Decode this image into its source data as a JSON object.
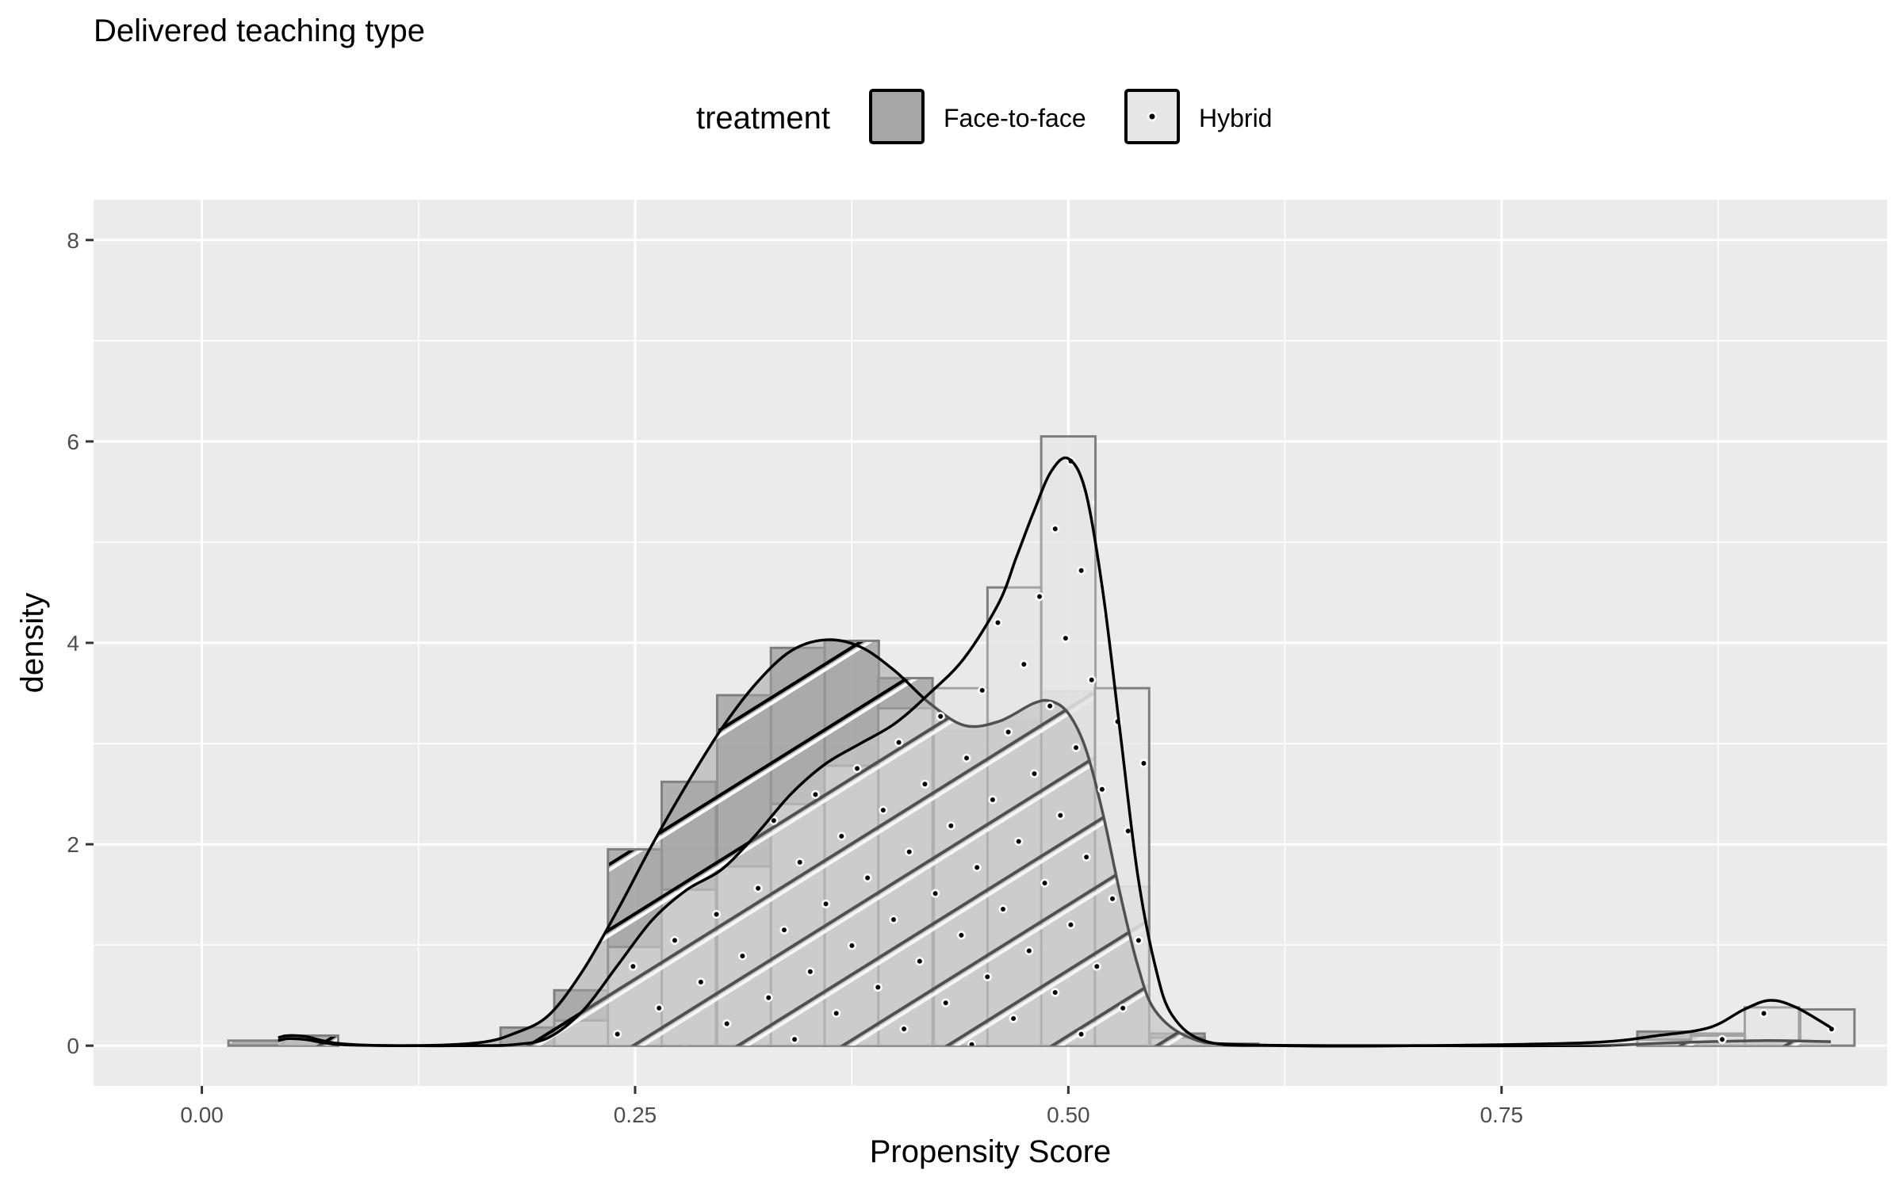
{
  "chart_data": {
    "type": "histogram+density",
    "title": "Delivered teaching type",
    "xlabel": "Propensity Score",
    "ylabel": "density",
    "xlim": [
      -0.0625,
      0.9725
    ],
    "ylim": [
      -0.4,
      8.4
    ],
    "x_ticks": [
      0.0,
      0.25,
      0.5,
      0.75
    ],
    "x_tick_labels": [
      "0.00",
      "0.25",
      "0.50",
      "0.75"
    ],
    "y_ticks": [
      0,
      2,
      4,
      6,
      8
    ],
    "y_tick_labels": [
      "0",
      "2",
      "4",
      "6",
      "8"
    ],
    "grid": true,
    "legend": {
      "title": "treatment",
      "position": "top",
      "entries": [
        {
          "label": "Face-to-face",
          "fill": "#a6a6a6",
          "pattern": "stripe"
        },
        {
          "label": "Hybrid",
          "fill": "#e6e6e6",
          "pattern": "dots"
        }
      ]
    },
    "bin_width": 0.0313,
    "series": [
      {
        "name": "Face-to-face",
        "pattern": "stripe",
        "fill": "#a6a6a6",
        "histogram": [
          {
            "x": 0.031,
            "density": 0.05
          },
          {
            "x": 0.063,
            "density": 0.1
          },
          {
            "x": 0.188,
            "density": 0.18
          },
          {
            "x": 0.219,
            "density": 0.55
          },
          {
            "x": 0.25,
            "density": 1.95
          },
          {
            "x": 0.281,
            "density": 2.62
          },
          {
            "x": 0.313,
            "density": 3.48
          },
          {
            "x": 0.344,
            "density": 3.95
          },
          {
            "x": 0.375,
            "density": 4.02
          },
          {
            "x": 0.406,
            "density": 3.65
          },
          {
            "x": 0.438,
            "density": 3.12
          },
          {
            "x": 0.469,
            "density": 3.22
          },
          {
            "x": 0.5,
            "density": 3.52
          },
          {
            "x": 0.531,
            "density": 1.58
          },
          {
            "x": 0.563,
            "density": 0.12
          },
          {
            "x": 0.594,
            "density": 0.02
          },
          {
            "x": 0.844,
            "density": 0.14
          },
          {
            "x": 0.875,
            "density": 0.12
          },
          {
            "x": 0.906,
            "density": 0.05
          }
        ],
        "density_curve": [
          {
            "x": 0.044,
            "y": 0.08
          },
          {
            "x": 0.05,
            "y": 0.1
          },
          {
            "x": 0.06,
            "y": 0.09
          },
          {
            "x": 0.08,
            "y": 0.02
          },
          {
            "x": 0.12,
            "y": 0.0
          },
          {
            "x": 0.16,
            "y": 0.03
          },
          {
            "x": 0.18,
            "y": 0.12
          },
          {
            "x": 0.2,
            "y": 0.3
          },
          {
            "x": 0.22,
            "y": 0.75
          },
          {
            "x": 0.24,
            "y": 1.35
          },
          {
            "x": 0.26,
            "y": 2.0
          },
          {
            "x": 0.28,
            "y": 2.6
          },
          {
            "x": 0.3,
            "y": 3.15
          },
          {
            "x": 0.32,
            "y": 3.6
          },
          {
            "x": 0.34,
            "y": 3.92
          },
          {
            "x": 0.36,
            "y": 4.03
          },
          {
            "x": 0.38,
            "y": 3.96
          },
          {
            "x": 0.4,
            "y": 3.72
          },
          {
            "x": 0.42,
            "y": 3.4
          },
          {
            "x": 0.44,
            "y": 3.18
          },
          {
            "x": 0.46,
            "y": 3.22
          },
          {
            "x": 0.48,
            "y": 3.4
          },
          {
            "x": 0.49,
            "y": 3.42
          },
          {
            "x": 0.5,
            "y": 3.3
          },
          {
            "x": 0.51,
            "y": 2.95
          },
          {
            "x": 0.52,
            "y": 2.3
          },
          {
            "x": 0.53,
            "y": 1.5
          },
          {
            "x": 0.54,
            "y": 0.8
          },
          {
            "x": 0.55,
            "y": 0.35
          },
          {
            "x": 0.57,
            "y": 0.08
          },
          {
            "x": 0.6,
            "y": 0.01
          },
          {
            "x": 0.7,
            "y": 0.0
          },
          {
            "x": 0.8,
            "y": 0.0
          },
          {
            "x": 0.85,
            "y": 0.03
          },
          {
            "x": 0.9,
            "y": 0.05
          },
          {
            "x": 0.94,
            "y": 0.04
          }
        ]
      },
      {
        "name": "Hybrid",
        "pattern": "dots",
        "fill": "#e6e6e6",
        "histogram": [
          {
            "x": 0.219,
            "density": 0.25
          },
          {
            "x": 0.25,
            "density": 0.98
          },
          {
            "x": 0.281,
            "density": 1.55
          },
          {
            "x": 0.313,
            "density": 1.78
          },
          {
            "x": 0.344,
            "density": 2.4
          },
          {
            "x": 0.375,
            "density": 2.78
          },
          {
            "x": 0.406,
            "density": 3.35
          },
          {
            "x": 0.438,
            "density": 3.55
          },
          {
            "x": 0.469,
            "density": 4.55
          },
          {
            "x": 0.5,
            "density": 6.05
          },
          {
            "x": 0.531,
            "density": 3.55
          },
          {
            "x": 0.563,
            "density": 0.08
          },
          {
            "x": 0.844,
            "density": 0.06
          },
          {
            "x": 0.875,
            "density": 0.1
          },
          {
            "x": 0.906,
            "density": 0.38
          },
          {
            "x": 0.938,
            "density": 0.36
          }
        ],
        "density_curve": [
          {
            "x": 0.044,
            "y": 0.05
          },
          {
            "x": 0.05,
            "y": 0.07
          },
          {
            "x": 0.06,
            "y": 0.06
          },
          {
            "x": 0.08,
            "y": 0.01
          },
          {
            "x": 0.12,
            "y": 0.0
          },
          {
            "x": 0.16,
            "y": 0.0
          },
          {
            "x": 0.18,
            "y": 0.01
          },
          {
            "x": 0.2,
            "y": 0.08
          },
          {
            "x": 0.22,
            "y": 0.35
          },
          {
            "x": 0.24,
            "y": 0.8
          },
          {
            "x": 0.26,
            "y": 1.25
          },
          {
            "x": 0.28,
            "y": 1.55
          },
          {
            "x": 0.3,
            "y": 1.75
          },
          {
            "x": 0.32,
            "y": 2.1
          },
          {
            "x": 0.34,
            "y": 2.5
          },
          {
            "x": 0.36,
            "y": 2.8
          },
          {
            "x": 0.38,
            "y": 3.0
          },
          {
            "x": 0.4,
            "y": 3.2
          },
          {
            "x": 0.42,
            "y": 3.5
          },
          {
            "x": 0.44,
            "y": 3.85
          },
          {
            "x": 0.46,
            "y": 4.4
          },
          {
            "x": 0.47,
            "y": 4.85
          },
          {
            "x": 0.48,
            "y": 5.3
          },
          {
            "x": 0.49,
            "y": 5.7
          },
          {
            "x": 0.5,
            "y": 5.83
          },
          {
            "x": 0.51,
            "y": 5.5
          },
          {
            "x": 0.52,
            "y": 4.5
          },
          {
            "x": 0.53,
            "y": 3.1
          },
          {
            "x": 0.54,
            "y": 1.7
          },
          {
            "x": 0.55,
            "y": 0.8
          },
          {
            "x": 0.56,
            "y": 0.3
          },
          {
            "x": 0.58,
            "y": 0.04
          },
          {
            "x": 0.62,
            "y": 0.0
          },
          {
            "x": 0.7,
            "y": 0.0
          },
          {
            "x": 0.8,
            "y": 0.03
          },
          {
            "x": 0.84,
            "y": 0.1
          },
          {
            "x": 0.87,
            "y": 0.18
          },
          {
            "x": 0.89,
            "y": 0.36
          },
          {
            "x": 0.905,
            "y": 0.45
          },
          {
            "x": 0.92,
            "y": 0.38
          },
          {
            "x": 0.94,
            "y": 0.18
          }
        ]
      }
    ]
  }
}
